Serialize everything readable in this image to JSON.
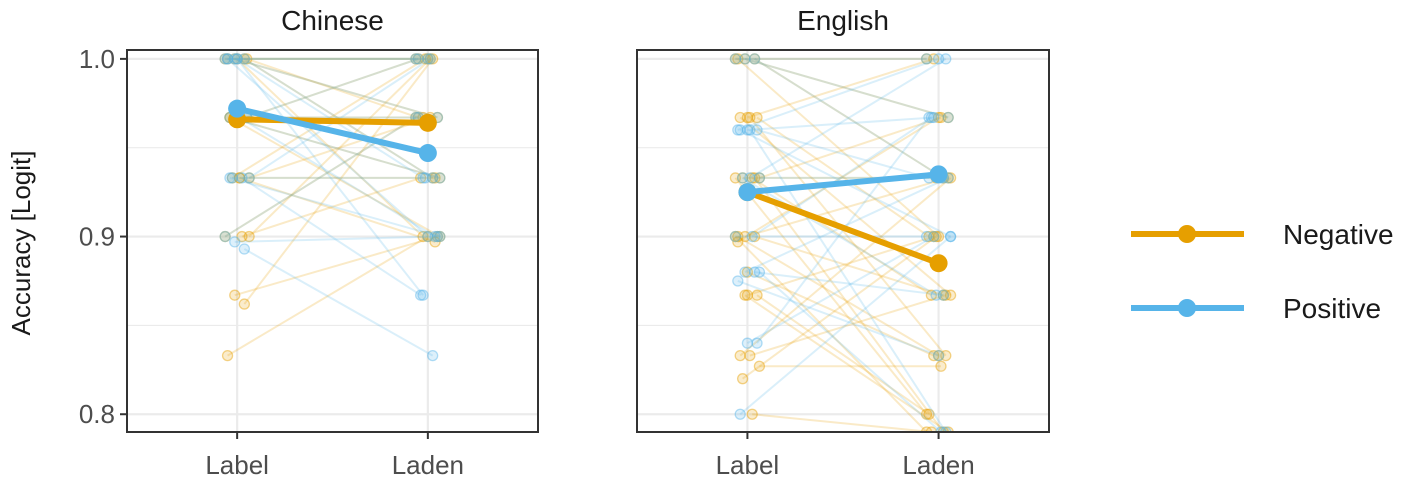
{
  "chart_data": {
    "type": "line",
    "ylabel": "Accuracy [Logit]",
    "ylim": [
      0.79,
      1.005
    ],
    "yticks": [
      0.8,
      0.9,
      1.0
    ],
    "ytick_labels": [
      "0.8",
      "0.9",
      "1.0"
    ],
    "grid": true,
    "legend_position": "right",
    "colors": {
      "Negative": "#E69F00",
      "Positive": "#56B4E9"
    },
    "panels": [
      {
        "title": "Chinese",
        "categories": [
          "Label",
          "Laden"
        ],
        "series": [
          {
            "name": "Negative",
            "mean": [
              0.966,
              0.964
            ]
          },
          {
            "name": "Positive",
            "mean": [
              0.972,
              0.947
            ]
          }
        ],
        "individual": {
          "Negative": [
            [
              1.0,
              1.0
            ],
            [
              1.0,
              0.967
            ],
            [
              1.0,
              0.933
            ],
            [
              1.0,
              1.0
            ],
            [
              0.967,
              0.967
            ],
            [
              0.967,
              1.0
            ],
            [
              0.967,
              0.9
            ],
            [
              0.933,
              0.933
            ],
            [
              0.933,
              0.967
            ],
            [
              0.933,
              1.0
            ],
            [
              0.9,
              0.933
            ],
            [
              0.9,
              0.967
            ],
            [
              0.867,
              0.9
            ],
            [
              0.862,
              1.0
            ],
            [
              0.833,
              0.9
            ],
            [
              1.0,
              0.9
            ],
            [
              1.0,
              0.967
            ],
            [
              0.967,
              0.933
            ],
            [
              0.933,
              0.897
            ],
            [
              0.9,
              1.0
            ]
          ],
          "Positive": [
            [
              1.0,
              1.0
            ],
            [
              1.0,
              0.967
            ],
            [
              1.0,
              0.933
            ],
            [
              1.0,
              0.9
            ],
            [
              1.0,
              0.867
            ],
            [
              0.967,
              1.0
            ],
            [
              0.967,
              0.933
            ],
            [
              0.967,
              0.9
            ],
            [
              0.933,
              1.0
            ],
            [
              0.933,
              0.933
            ],
            [
              0.933,
              0.867
            ],
            [
              0.9,
              0.967
            ],
            [
              0.897,
              0.9
            ],
            [
              0.893,
              0.833
            ],
            [
              1.0,
              1.0
            ],
            [
              1.0,
              0.933
            ],
            [
              0.967,
              0.967
            ],
            [
              0.933,
              0.9
            ]
          ]
        }
      },
      {
        "title": "English",
        "categories": [
          "Label",
          "Laden"
        ],
        "series": [
          {
            "name": "Negative",
            "mean": [
              0.925,
              0.885
            ]
          },
          {
            "name": "Positive",
            "mean": [
              0.925,
              0.935
            ]
          }
        ],
        "individual": {
          "Negative": [
            [
              1.0,
              1.0
            ],
            [
              1.0,
              0.967
            ],
            [
              1.0,
              0.933
            ],
            [
              1.0,
              0.9
            ],
            [
              0.967,
              1.0
            ],
            [
              0.967,
              0.9
            ],
            [
              0.967,
              0.867
            ],
            [
              0.967,
              0.833
            ],
            [
              0.933,
              0.967
            ],
            [
              0.933,
              0.933
            ],
            [
              0.933,
              0.867
            ],
            [
              0.933,
              0.8
            ],
            [
              0.9,
              0.933
            ],
            [
              0.9,
              0.867
            ],
            [
              0.9,
              0.833
            ],
            [
              0.867,
              0.9
            ],
            [
              0.867,
              0.8
            ],
            [
              0.833,
              0.933
            ],
            [
              0.833,
              0.867
            ],
            [
              0.827,
              0.827
            ],
            [
              0.82,
              0.9
            ],
            [
              0.8,
              0.79
            ],
            [
              0.9,
              0.79
            ],
            [
              0.867,
              0.79
            ],
            [
              0.933,
              0.79
            ],
            [
              0.897,
              0.967
            ],
            [
              0.88,
              0.833
            ]
          ],
          "Positive": [
            [
              1.0,
              1.0
            ],
            [
              1.0,
              0.967
            ],
            [
              1.0,
              0.933
            ],
            [
              0.96,
              1.0
            ],
            [
              0.96,
              0.967
            ],
            [
              0.96,
              0.933
            ],
            [
              0.96,
              0.9
            ],
            [
              0.933,
              1.0
            ],
            [
              0.933,
              0.933
            ],
            [
              0.933,
              0.867
            ],
            [
              0.9,
              0.967
            ],
            [
              0.9,
              0.9
            ],
            [
              0.88,
              0.933
            ],
            [
              0.88,
              0.867
            ],
            [
              0.875,
              0.833
            ],
            [
              0.84,
              0.9
            ],
            [
              0.84,
              0.967
            ],
            [
              0.8,
              0.9
            ],
            [
              0.96,
              0.79
            ],
            [
              0.88,
              0.79
            ]
          ]
        }
      }
    ],
    "legend": [
      {
        "name": "Negative",
        "label": "Negative"
      },
      {
        "name": "Positive",
        "label": "Positive"
      }
    ]
  }
}
